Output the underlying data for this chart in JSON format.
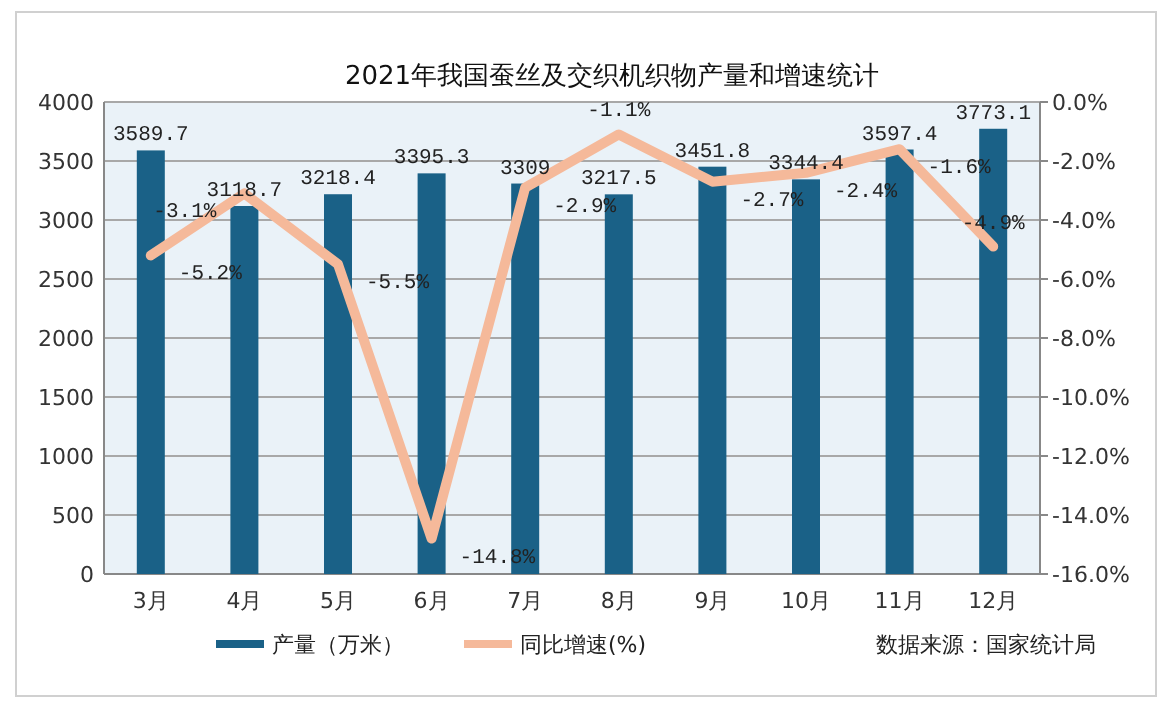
{
  "chart_data": {
    "type": "bar",
    "title": "2021年我国蚕丝及交织机织物产量和增速统计",
    "categories": [
      "3月",
      "4月",
      "5月",
      "6月",
      "7月",
      "8月",
      "9月",
      "10月",
      "11月",
      "12月"
    ],
    "series": [
      {
        "name": "产量（万米）",
        "color": "#1a6187",
        "values": [
          3589.7,
          3118.7,
          3218.4,
          3395.3,
          3309,
          3217.5,
          3451.8,
          3344.4,
          3597.4,
          3773.1
        ],
        "value_labels": [
          "3589.7",
          "3118.7",
          "3218.4",
          "3395.3",
          "3309",
          "3217.5",
          "3451.8",
          "3344.4",
          "3597.4",
          "3773.1"
        ]
      },
      {
        "name": "同比增速(%)",
        "type": "line",
        "axis": "y2",
        "color": "#f5b99a",
        "values": [
          -5.2,
          -3.1,
          -5.5,
          -14.8,
          -2.9,
          -1.1,
          -2.7,
          -2.4,
          -1.6,
          -4.9
        ],
        "value_labels": [
          "-5.2%",
          "-3.1%",
          "-5.5%",
          "-14.8%",
          "-2.9%",
          "-1.1%",
          "-2.7%",
          "-2.4%",
          "-1.6%",
          "-4.9%"
        ]
      }
    ],
    "ylim": [
      0,
      4000
    ],
    "yticks": [
      0,
      500,
      1000,
      1500,
      2000,
      2500,
      3000,
      3500,
      4000
    ],
    "y2lim": [
      -16,
      0
    ],
    "y2ticks": [
      {
        "value": 0,
        "label": "0.0%"
      },
      {
        "value": -2,
        "label": "-2.0%"
      },
      {
        "value": -4,
        "label": "-4.0%"
      },
      {
        "value": -6,
        "label": "-6.0%"
      },
      {
        "value": -8,
        "label": "-8.0%"
      },
      {
        "value": -10,
        "label": "-10.0%"
      },
      {
        "value": -12,
        "label": "-12.0%"
      },
      {
        "value": -14,
        "label": "-14.0%"
      },
      {
        "value": -16,
        "label": "-16.0%"
      }
    ],
    "grid": "y",
    "legend": "bottom",
    "annotations": [
      "数据来源：国家统计局"
    ]
  }
}
